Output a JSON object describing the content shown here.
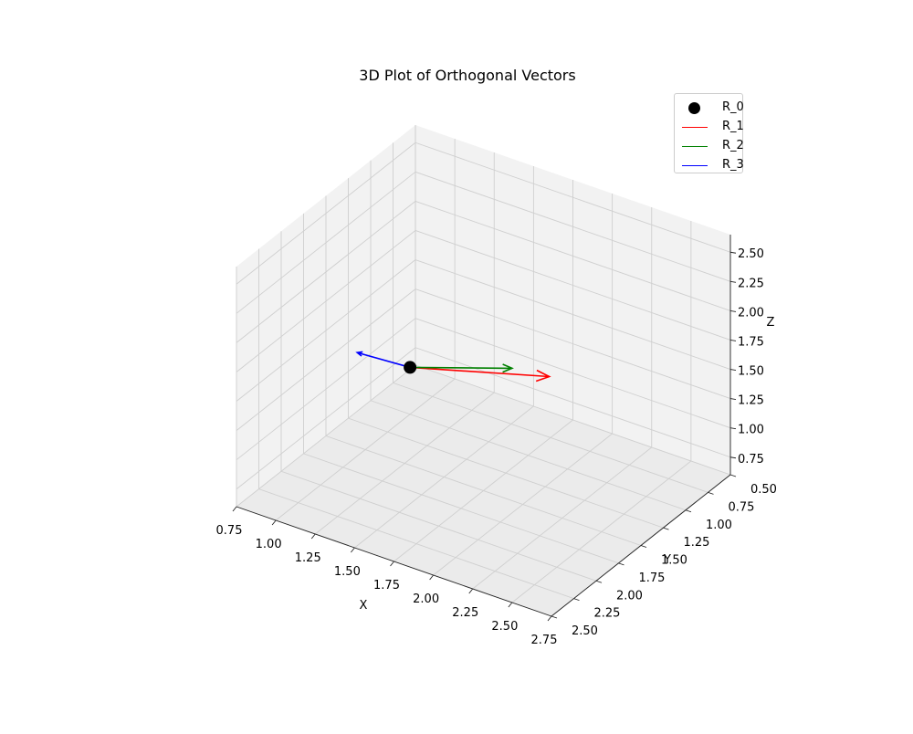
{
  "chart_data": {
    "type": "scatter",
    "projection": "3d",
    "title": "3D Plot of Orthogonal Vectors",
    "xlabel": "X",
    "ylabel": "Y",
    "zlabel": "Z",
    "xlim": [
      0.75,
      2.75
    ],
    "ylim": [
      0.5,
      2.5
    ],
    "zlim": [
      0.6,
      2.65
    ],
    "x_ticks": [
      "0.75",
      "1.00",
      "1.25",
      "1.50",
      "1.75",
      "2.00",
      "2.25",
      "2.50",
      "2.75"
    ],
    "y_ticks": [
      "0.50",
      "0.75",
      "1.00",
      "1.25",
      "1.50",
      "1.75",
      "2.00",
      "2.25",
      "2.50"
    ],
    "z_ticks": [
      "0.75",
      "1.00",
      "1.25",
      "1.50",
      "1.75",
      "2.00",
      "2.25",
      "2.50"
    ],
    "grid": true,
    "legend_position": "top-right",
    "origin": {
      "name": "R_0",
      "x": 1.0,
      "y": 1.0,
      "z": 1.0,
      "color": "#000000"
    },
    "vectors": [
      {
        "name": "R_1",
        "color": "#ff0000",
        "start": [
          1.0,
          1.0,
          1.0
        ],
        "end": [
          1.6,
          0.5,
          0.9
        ]
      },
      {
        "name": "R_2",
        "color": "#008000",
        "start": [
          1.0,
          1.0,
          1.0
        ],
        "end": [
          2.5,
          2.5,
          2.6
        ]
      },
      {
        "name": "R_3",
        "color": "#0000ff",
        "start": [
          1.0,
          1.0,
          1.0
        ],
        "end": [
          0.75,
          1.15,
          1.1
        ]
      }
    ]
  }
}
